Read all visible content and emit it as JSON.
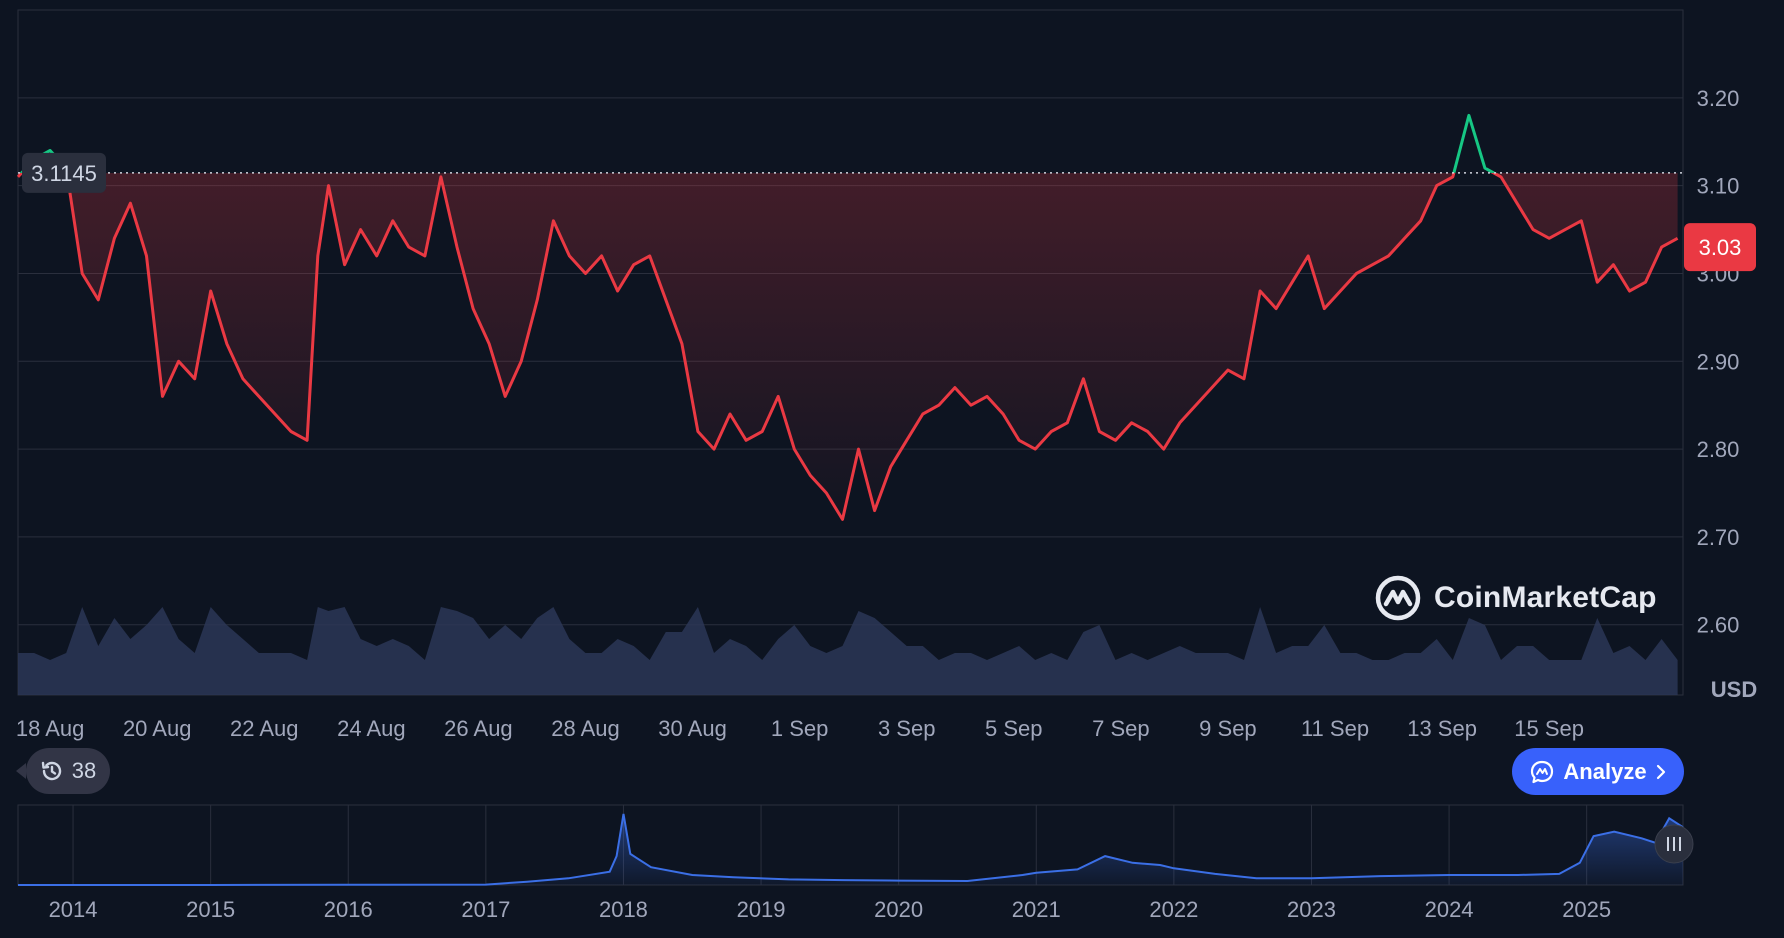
{
  "chart_data": [
    {
      "type": "line",
      "title": "",
      "currency": "USD",
      "reference_price": "3.1145",
      "current_price": "3.03",
      "ylim": [
        2.52,
        3.3
      ],
      "y_ticks": [
        "3.20",
        "3.10",
        "3.00",
        "2.90",
        "2.80",
        "2.70",
        "2.60"
      ],
      "y_tick_values": [
        3.2,
        3.1,
        3.0,
        2.9,
        2.8,
        2.7,
        2.6
      ],
      "x_ticks": [
        "18 Aug",
        "20 Aug",
        "22 Aug",
        "24 Aug",
        "26 Aug",
        "28 Aug",
        "30 Aug",
        "1 Sep",
        "3 Sep",
        "5 Sep",
        "7 Sep",
        "9 Sep",
        "11 Sep",
        "13 Sep",
        "15 Sep"
      ],
      "x_tick_days": [
        0.6,
        2.6,
        4.6,
        6.6,
        8.6,
        10.6,
        12.6,
        14.6,
        16.6,
        18.6,
        20.6,
        22.6,
        24.6,
        26.6,
        28.6
      ],
      "x_range_days": [
        0,
        31.1
      ],
      "above_reference_color": "#16c784",
      "below_reference_color": "#ea3943",
      "series": [
        {
          "x": [
            0,
            0.3,
            0.6,
            0.9,
            1.2,
            1.5,
            1.8,
            2.1,
            2.4,
            2.7,
            3.0,
            3.3,
            3.6,
            3.9,
            4.2,
            4.5,
            4.8,
            5.1,
            5.4,
            5.6,
            5.8,
            6.1,
            6.4,
            6.7,
            7.0,
            7.3,
            7.6,
            7.9,
            8.2,
            8.5,
            8.8,
            9.1,
            9.4,
            9.7,
            10.0,
            10.3,
            10.6,
            10.9,
            11.2,
            11.5,
            11.8,
            12.1,
            12.4,
            12.7,
            13.0,
            13.3,
            13.6,
            13.9,
            14.2,
            14.5,
            14.8,
            15.1,
            15.4,
            15.7,
            16.0,
            16.3,
            16.6,
            16.9,
            17.2,
            17.5,
            17.8,
            18.1,
            18.4,
            18.7,
            19.0,
            19.3,
            19.6,
            19.9,
            20.2,
            20.5,
            20.8,
            21.1,
            21.4,
            21.7,
            22.0,
            22.3,
            22.6,
            22.9,
            23.2,
            23.5,
            23.8,
            24.1,
            24.4,
            24.7,
            25.0,
            25.3,
            25.6,
            25.9,
            26.2,
            26.5,
            26.8,
            27.1,
            27.4,
            27.7,
            28.0,
            28.3,
            28.6,
            28.9,
            29.2,
            29.5,
            29.8,
            30.1,
            30.4,
            30.7,
            31.0
          ],
          "y": [
            3.11,
            3.13,
            3.14,
            3.12,
            3.0,
            2.97,
            3.04,
            3.08,
            3.02,
            2.86,
            2.9,
            2.88,
            2.98,
            2.92,
            2.88,
            2.86,
            2.84,
            2.82,
            2.81,
            3.02,
            3.1,
            3.01,
            3.05,
            3.02,
            3.06,
            3.03,
            3.02,
            3.11,
            3.03,
            2.96,
            2.92,
            2.86,
            2.9,
            2.97,
            3.06,
            3.02,
            3.0,
            3.02,
            2.98,
            3.01,
            3.02,
            2.97,
            2.92,
            2.82,
            2.8,
            2.84,
            2.81,
            2.82,
            2.86,
            2.8,
            2.77,
            2.75,
            2.72,
            2.8,
            2.73,
            2.78,
            2.81,
            2.84,
            2.85,
            2.87,
            2.85,
            2.86,
            2.84,
            2.81,
            2.8,
            2.82,
            2.83,
            2.88,
            2.82,
            2.81,
            2.83,
            2.82,
            2.8,
            2.83,
            2.85,
            2.87,
            2.89,
            2.88,
            2.98,
            2.96,
            2.99,
            3.02,
            2.96,
            2.98,
            3.0,
            3.01,
            3.02,
            3.04,
            3.06,
            3.1,
            3.11,
            3.18,
            3.12,
            3.11,
            3.08,
            3.05,
            3.04,
            3.05,
            3.06,
            2.99,
            3.01,
            2.98,
            2.99,
            3.03,
            3.04
          ]
        }
      ]
    },
    {
      "type": "area",
      "title": "",
      "x_ticks": [
        "2014",
        "2015",
        "2016",
        "2017",
        "2018",
        "2019",
        "2020",
        "2021",
        "2022",
        "2023",
        "2024",
        "2025"
      ],
      "x_tick_years": [
        2014,
        2015,
        2016,
        2017,
        2018,
        2019,
        2020,
        2021,
        2022,
        2023,
        2024,
        2025
      ],
      "x_range_years": [
        2013.6,
        2025.7
      ],
      "ylim": [
        0,
        3.6
      ],
      "series": [
        {
          "x": [
            2013.6,
            2014.0,
            2015.0,
            2016.0,
            2017.0,
            2017.3,
            2017.6,
            2017.9,
            2017.95,
            2018.0,
            2018.05,
            2018.2,
            2018.5,
            2018.8,
            2019.2,
            2019.6,
            2020.0,
            2020.5,
            2020.9,
            2021.0,
            2021.3,
            2021.5,
            2021.7,
            2021.9,
            2022.0,
            2022.3,
            2022.6,
            2023.0,
            2023.5,
            2024.0,
            2024.5,
            2024.8,
            2024.95,
            2025.05,
            2025.2,
            2025.4,
            2025.5,
            2025.6,
            2025.7
          ],
          "y": [
            0.0,
            0.0,
            0.0,
            0.01,
            0.02,
            0.15,
            0.3,
            0.6,
            1.3,
            3.2,
            1.4,
            0.8,
            0.45,
            0.35,
            0.25,
            0.22,
            0.2,
            0.18,
            0.45,
            0.55,
            0.7,
            1.3,
            1.0,
            0.9,
            0.75,
            0.5,
            0.3,
            0.3,
            0.4,
            0.45,
            0.45,
            0.5,
            1.0,
            2.2,
            2.4,
            2.1,
            1.9,
            3.0,
            2.6
          ]
        }
      ]
    }
  ],
  "brand": {
    "name": "CoinMarketCap",
    "logo_icon": "coinmarketcap-logo-icon"
  },
  "history_badge": {
    "icon": "history-clock-icon",
    "count": "38"
  },
  "analyze_button": {
    "label": "Analyze",
    "icon": "ai-spark-icon",
    "chevron": "chevron-right-icon"
  },
  "colors": {
    "background": "#0d1421",
    "grid": "#2a2f3d",
    "volume": "#2b3656",
    "navigator_line": "#3b6fe6",
    "accent": "#3861fb"
  }
}
